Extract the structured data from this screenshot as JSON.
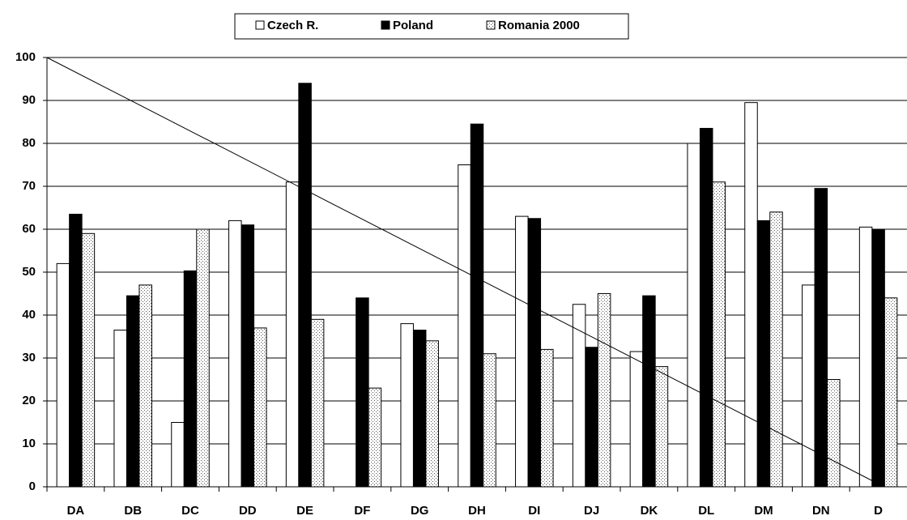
{
  "chart_data": {
    "type": "bar",
    "categories": [
      "DA",
      "DB",
      "DC",
      "DD",
      "DE",
      "DF",
      "DG",
      "DH",
      "DI",
      "DJ",
      "DK",
      "DL",
      "DM",
      "DN",
      "D"
    ],
    "series": [
      {
        "name": "Czech R.",
        "color": "#ffffff",
        "values": [
          52,
          36.5,
          15,
          62,
          71,
          null,
          38,
          75,
          63,
          42.5,
          31.5,
          80,
          89.5,
          47,
          60.5
        ]
      },
      {
        "name": "Poland",
        "color": "#000000",
        "values": [
          63.5,
          44.5,
          50.3,
          61,
          94,
          44,
          36.5,
          84.5,
          62.5,
          32.5,
          44.5,
          83.5,
          62,
          69.5,
          60
        ]
      },
      {
        "name": "Romania 2000",
        "color": "#d8d8d8",
        "pattern": "dots",
        "values": [
          59,
          47,
          60,
          37,
          39,
          23,
          34,
          31,
          32,
          45,
          28,
          71,
          64,
          25,
          44
        ]
      }
    ],
    "diagonal": [
      100,
      0
    ],
    "ylim": [
      0,
      100
    ],
    "yticks": [
      0,
      10,
      20,
      30,
      40,
      50,
      60,
      70,
      80,
      90,
      100
    ],
    "grid": true,
    "legend": "top"
  }
}
